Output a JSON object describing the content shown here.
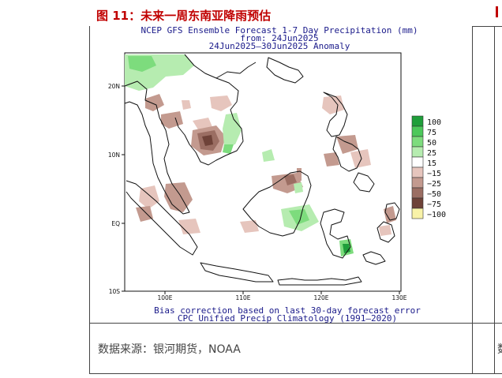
{
  "figure": {
    "title": "图 11：未来一周东南亚降雨预估",
    "source": "数据来源：银河期货，NOAA",
    "edge_source": "数"
  },
  "map": {
    "header_line1": "NCEP GFS Ensemble Forecast 1-7 Day Precipitation (mm)",
    "header_line2": "from: 24Jun2025",
    "header_line3": "24Jun2025–30Jun2025 Anomaly",
    "footer_line1": "Bias correction based on last 30-day forecast error",
    "footer_line2": "CPC Unified Precip Climatology (1991–2020)",
    "lat_ticks": [
      "20N",
      "10N",
      "EQ",
      "10S"
    ],
    "lon_ticks": [
      "100E",
      "110E",
      "120E",
      "130E"
    ],
    "legend": [
      {
        "label": "100",
        "color": "#1f9e3a"
      },
      {
        "label": "75",
        "color": "#4cc85a"
      },
      {
        "label": "50",
        "color": "#7ddc7d"
      },
      {
        "label": "25",
        "color": "#b6ecb0"
      },
      {
        "label": "15",
        "color": "#ffffff"
      },
      {
        "label": "−15",
        "color": "#e6c5bd"
      },
      {
        "label": "−25",
        "color": "#c39a8f"
      },
      {
        "label": "−50",
        "color": "#9b6e63"
      },
      {
        "label": "−75",
        "color": "#6e4238"
      },
      {
        "label": "−100",
        "color": "#f8f2a8"
      }
    ]
  }
}
